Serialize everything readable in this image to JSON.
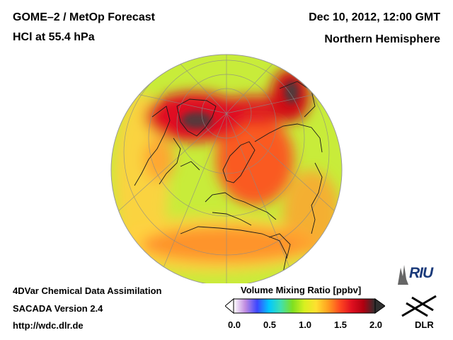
{
  "header": {
    "title_line1": "GOME–2 / MetOp Forecast",
    "title_line2": "HCl at 55.4 hPa",
    "date": "Dec 10, 2012, 12:00 GMT",
    "region": "Northern Hemisphere"
  },
  "footer": {
    "line1": "4DVar Chemical Data Assimilation",
    "line2": "SACADA Version 2.4",
    "line3": "http://wdc.dlr.de"
  },
  "colorbar": {
    "title": "Volume Mixing Ratio [ppbv]",
    "ticks": [
      "0.0",
      "0.5",
      "1.0",
      "1.5",
      "2.0"
    ],
    "min": 0.0,
    "max": 2.0,
    "colors": [
      "#ffffff",
      "#c08ce0",
      "#3c46ff",
      "#00c8ff",
      "#40e0b0",
      "#7fe020",
      "#d8f020",
      "#ffe030",
      "#ffa020",
      "#ff4a20",
      "#e01020",
      "#b00010",
      "#303030"
    ]
  },
  "logos": {
    "riu": "RIU",
    "dlr": "DLR"
  },
  "map": {
    "projection": "orthographic-north-polar",
    "background_level_ppbv": 1.2,
    "high_features": [
      {
        "name": "greenland-arctic-maximum",
        "level_ppbv": 2.0
      },
      {
        "name": "eastern-siberia-maximum",
        "level_ppbv": 2.0
      },
      {
        "name": "scandinavia-russia-tongue",
        "level_ppbv": 1.75
      },
      {
        "name": "arctic-connecting-band",
        "level_ppbv": 1.8
      },
      {
        "name": "north-atlantic-mediterranean-band",
        "level_ppbv": 1.55
      },
      {
        "name": "pacific-subtropical-band",
        "level_ppbv": 1.5
      }
    ]
  }
}
